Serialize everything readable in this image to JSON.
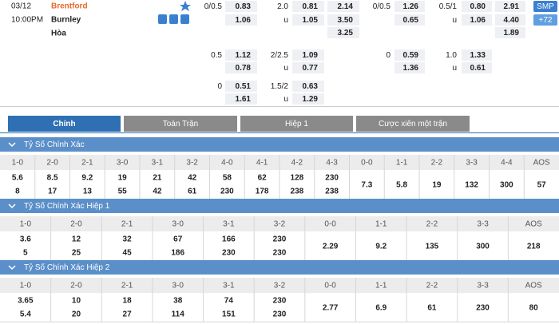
{
  "match": {
    "date": "03/12",
    "time": "10:00PM",
    "home": "Brentford",
    "away": "Burnley",
    "draw": "Hòa"
  },
  "buttons": {
    "smp": "SMP",
    "more": "+72"
  },
  "odds_rows": [
    [
      "0/0.5",
      "0.83",
      "2.0",
      "0.81",
      "2.14",
      "0/0.5",
      "1.26",
      "0.5/1",
      "0.80",
      "2.91"
    ],
    [
      null,
      "1.06",
      "u",
      "1.05",
      "3.50",
      null,
      "0.65",
      "u",
      "1.06",
      "4.40"
    ],
    [
      null,
      null,
      null,
      null,
      "3.25",
      null,
      null,
      null,
      null,
      "1.89"
    ],
    [
      "0.5",
      "1.12",
      "2/2.5",
      "1.09",
      null,
      "0",
      "0.59",
      "1.0",
      "1.33",
      null
    ],
    [
      null,
      "0.78",
      "u",
      "0.77",
      null,
      null,
      "1.36",
      "u",
      "0.61",
      null
    ],
    [
      "0",
      "0.51",
      "1.5/2",
      "0.63",
      null,
      null,
      null,
      null,
      null,
      null
    ],
    [
      null,
      "1.61",
      "u",
      "1.29",
      null,
      null,
      null,
      null,
      null,
      null
    ]
  ],
  "tabs": [
    "Chính",
    "Toàn Trận",
    "Hiệp 1",
    "Cược xiên một trận"
  ],
  "sections": [
    {
      "title": "Tỷ Số Chính Xác",
      "columns": [
        "1-0",
        "2-0",
        "2-1",
        "3-0",
        "3-1",
        "3-2",
        "4-0",
        "4-1",
        "4-2",
        "4-3",
        "0-0",
        "1-1",
        "2-2",
        "3-3",
        "4-4",
        "AOS"
      ],
      "values": [
        [
          "5.6",
          "8"
        ],
        [
          "8.5",
          "17"
        ],
        [
          "9.2",
          "13"
        ],
        [
          "19",
          "55"
        ],
        [
          "21",
          "42"
        ],
        [
          "42",
          "61"
        ],
        [
          "58",
          "230"
        ],
        [
          "62",
          "178"
        ],
        [
          "128",
          "238"
        ],
        [
          "230",
          "238"
        ],
        [
          "7.3"
        ],
        [
          "5.8"
        ],
        [
          "19"
        ],
        [
          "132"
        ],
        [
          "300"
        ],
        [
          "57"
        ]
      ]
    },
    {
      "title": "Tỷ Số Chính Xác Hiệp 1",
      "columns": [
        "1-0",
        "2-0",
        "2-1",
        "3-0",
        "3-1",
        "3-2",
        "0-0",
        "1-1",
        "2-2",
        "3-3",
        "AOS"
      ],
      "values": [
        [
          "3.6",
          "5"
        ],
        [
          "12",
          "25"
        ],
        [
          "32",
          "45"
        ],
        [
          "67",
          "186"
        ],
        [
          "166",
          "230"
        ],
        [
          "230",
          "230"
        ],
        [
          "2.29"
        ],
        [
          "9.2"
        ],
        [
          "135"
        ],
        [
          "300"
        ],
        [
          "218"
        ]
      ]
    },
    {
      "title": "Tỷ Số Chính Xác Hiệp 2",
      "columns": [
        "1-0",
        "2-0",
        "2-1",
        "3-0",
        "3-1",
        "3-2",
        "0-0",
        "1-1",
        "2-2",
        "3-3",
        "AOS"
      ],
      "values": [
        [
          "3.65",
          "5.4"
        ],
        [
          "10",
          "20"
        ],
        [
          "18",
          "27"
        ],
        [
          "38",
          "114"
        ],
        [
          "74",
          "151"
        ],
        [
          "230",
          "230"
        ],
        [
          "2.77"
        ],
        [
          "6.9"
        ],
        [
          "61"
        ],
        [
          "230"
        ],
        [
          "80"
        ]
      ]
    }
  ]
}
